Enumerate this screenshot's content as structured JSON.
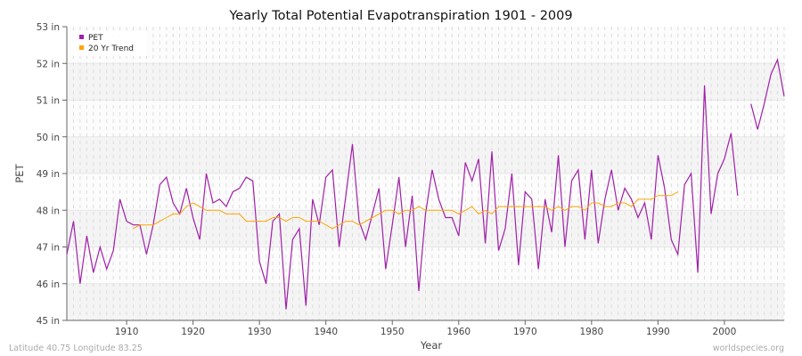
{
  "chart_data": {
    "type": "line",
    "title": "Yearly Total Potential Evapotranspiration 1901 - 2009",
    "xlabel": "Year",
    "ylabel": "PET",
    "ylim": [
      45,
      53
    ],
    "xlim": [
      1901,
      2009
    ],
    "yticks": [
      "45 in",
      "46 in",
      "47 in",
      "48 in",
      "49 in",
      "50 in",
      "51 in",
      "52 in",
      "53 in"
    ],
    "xticks": [
      1910,
      1920,
      1930,
      1940,
      1950,
      1960,
      1970,
      1980,
      1990,
      2000
    ],
    "grid": true,
    "legend_placement": "top-left",
    "series": [
      {
        "name": "PET",
        "color": "#a020a8",
        "start_year": 1901,
        "values": [
          46.8,
          47.7,
          46.0,
          47.3,
          46.3,
          47.0,
          46.4,
          46.9,
          48.3,
          47.7,
          47.6,
          47.6,
          46.8,
          47.6,
          48.7,
          48.9,
          48.2,
          47.9,
          48.6,
          47.8,
          47.2,
          49.0,
          48.2,
          48.3,
          48.1,
          48.5,
          48.6,
          48.9,
          48.8,
          46.6,
          46.0,
          47.7,
          47.9,
          45.3,
          47.2,
          47.5,
          45.4,
          48.3,
          47.6,
          48.9,
          49.1,
          47.0,
          48.4,
          49.8,
          47.7,
          47.2,
          47.9,
          48.6,
          46.4,
          47.6,
          48.9,
          47.0,
          48.4,
          45.8,
          47.9,
          49.1,
          48.3,
          47.8,
          47.8,
          47.3,
          49.3,
          48.8,
          49.4,
          47.1,
          49.6,
          46.9,
          47.5,
          49.0,
          46.5,
          48.5,
          48.3,
          46.4,
          48.3,
          47.4,
          49.5,
          47.0,
          48.8,
          49.1,
          47.2,
          49.1,
          47.1,
          48.3,
          49.1,
          48.0,
          48.6,
          48.3,
          47.8,
          48.2,
          47.2,
          49.5,
          48.6,
          47.2,
          46.8,
          48.7,
          49.0,
          46.3,
          51.4,
          47.9,
          49.0,
          49.4,
          50.1,
          48.4,
          null,
          50.9,
          50.2,
          50.9,
          51.7,
          52.1,
          51.1
        ]
      },
      {
        "name": "20 Yr Trend",
        "color": "#ffa500",
        "start_year": 1911,
        "values": [
          47.5,
          47.6,
          47.6,
          47.6,
          47.7,
          47.8,
          47.9,
          47.9,
          48.1,
          48.2,
          48.1,
          48.0,
          48.0,
          48.0,
          47.9,
          47.9,
          47.9,
          47.7,
          47.7,
          47.7,
          47.7,
          47.8,
          47.8,
          47.7,
          47.8,
          47.8,
          47.7,
          47.7,
          47.7,
          47.6,
          47.5,
          47.6,
          47.7,
          47.7,
          47.6,
          47.7,
          47.8,
          47.9,
          48.0,
          48.0,
          47.9,
          48.0,
          48.0,
          48.1,
          48.0,
          48.0,
          48.0,
          48.0,
          48.0,
          47.9,
          48.0,
          48.1,
          47.9,
          48.0,
          47.9,
          48.1,
          48.1,
          48.1,
          48.1,
          48.1,
          48.1,
          48.1,
          48.1,
          48.0,
          48.1,
          48.0,
          48.1,
          48.1,
          48.0,
          48.2,
          48.2,
          48.1,
          48.1,
          48.2,
          48.2,
          48.1,
          48.3,
          48.3,
          48.3,
          48.4,
          48.4,
          48.4,
          48.5
        ]
      }
    ]
  },
  "footer": {
    "left": "Latitude 40.75 Longitude 83.25",
    "right": "worldspecies.org"
  }
}
